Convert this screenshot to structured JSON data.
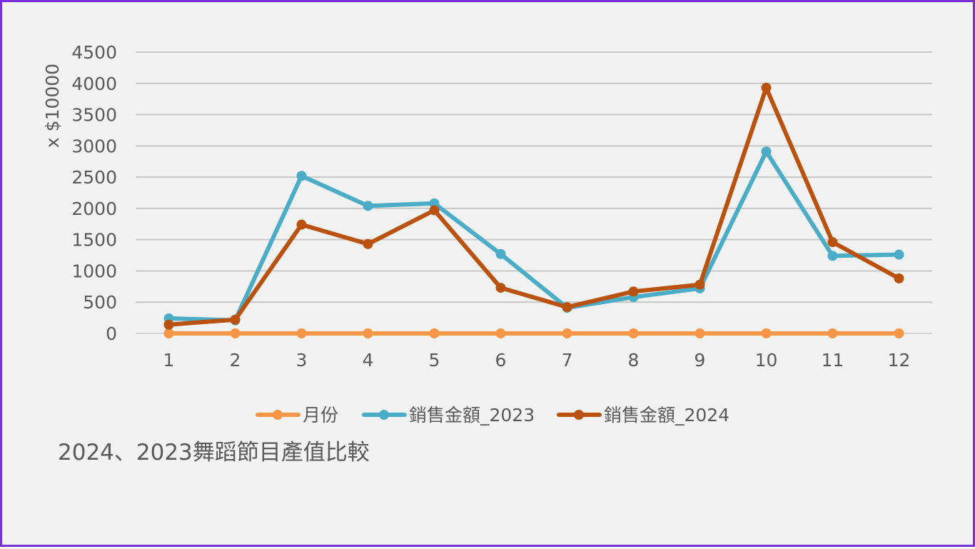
{
  "chart_data": {
    "type": "line",
    "title": "2024、2023舞蹈節目產值比較",
    "ylabel": "x $10000",
    "xlabel": "",
    "ylim": [
      0,
      4500
    ],
    "yticks": [
      0,
      500,
      1000,
      1500,
      2000,
      2500,
      3000,
      3500,
      4000,
      4500
    ],
    "categories": [
      "1",
      "2",
      "3",
      "4",
      "5",
      "6",
      "7",
      "8",
      "9",
      "10",
      "11",
      "12"
    ],
    "grid": true,
    "legend_position": "bottom",
    "series": [
      {
        "name": "月份",
        "color": "#f79646",
        "values": [
          0,
          0,
          0,
          0,
          0,
          0,
          0,
          0,
          0,
          0,
          0,
          0
        ]
      },
      {
        "name": "銷售金額_2023",
        "color": "#4bacc6",
        "values": [
          240,
          210,
          2520,
          2040,
          2080,
          1270,
          410,
          580,
          720,
          2910,
          1240,
          1260
        ]
      },
      {
        "name": "銷售金額_2024",
        "color": "#b8520e",
        "values": [
          140,
          220,
          1740,
          1430,
          1970,
          730,
          420,
          670,
          780,
          3930,
          1460,
          880
        ]
      }
    ]
  }
}
